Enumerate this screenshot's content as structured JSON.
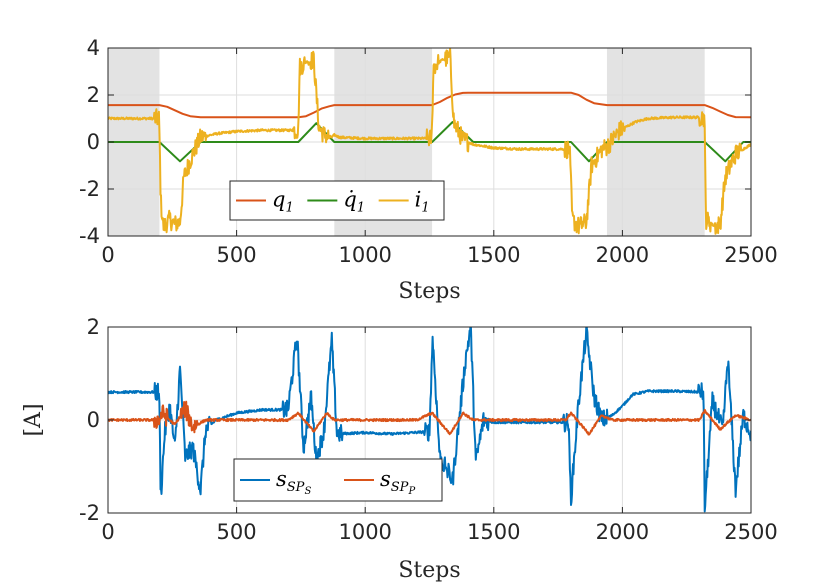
{
  "chart_data": [
    {
      "type": "line",
      "xlabel": "Steps",
      "ylabel": "",
      "xlim": [
        0,
        2500
      ],
      "ylim": [
        -4,
        4
      ],
      "xticks": [
        0,
        500,
        1000,
        1500,
        2000,
        2500
      ],
      "xtick_labels": [
        "0",
        "500",
        "1000",
        "1500",
        "2000",
        "2500"
      ],
      "yticks": [
        -4,
        -2,
        0,
        2,
        4
      ],
      "ytick_labels": [
        "-4",
        "-2",
        "0",
        "2",
        "4"
      ],
      "grid": true,
      "legend_placement": "bottom-left",
      "shaded_regions": [
        [
          0,
          200
        ],
        [
          880,
          1260
        ],
        [
          1940,
          2320
        ]
      ],
      "shade_color": "#e3e3e3",
      "series": [
        {
          "name": "q1",
          "color": "#d95319",
          "points": [
            [
              0,
              1.57
            ],
            [
              200,
              1.57
            ],
            [
              230,
              1.5
            ],
            [
              260,
              1.35
            ],
            [
              290,
              1.2
            ],
            [
              320,
              1.1
            ],
            [
              360,
              1.05
            ],
            [
              740,
              1.05
            ],
            [
              770,
              1.1
            ],
            [
              800,
              1.25
            ],
            [
              830,
              1.42
            ],
            [
              860,
              1.52
            ],
            [
              880,
              1.57
            ],
            [
              1260,
              1.57
            ],
            [
              1290,
              1.7
            ],
            [
              1320,
              1.88
            ],
            [
              1350,
              2.02
            ],
            [
              1380,
              2.09
            ],
            [
              1400,
              2.1
            ],
            [
              1800,
              2.1
            ],
            [
              1830,
              2.0
            ],
            [
              1860,
              1.8
            ],
            [
              1890,
              1.65
            ],
            [
              1940,
              1.57
            ],
            [
              2320,
              1.57
            ],
            [
              2350,
              1.45
            ],
            [
              2380,
              1.3
            ],
            [
              2410,
              1.15
            ],
            [
              2440,
              1.06
            ],
            [
              2500,
              1.05
            ]
          ]
        },
        {
          "name": "q̇1",
          "color": "#2e8b1a",
          "points": [
            [
              0,
              0
            ],
            [
              200,
              0
            ],
            [
              280,
              -0.82
            ],
            [
              360,
              0
            ],
            [
              740,
              0
            ],
            [
              810,
              0.8
            ],
            [
              880,
              0
            ],
            [
              1260,
              0
            ],
            [
              1340,
              0.85
            ],
            [
              1420,
              0
            ],
            [
              1800,
              0
            ],
            [
              1870,
              -0.82
            ],
            [
              1940,
              0
            ],
            [
              2320,
              0
            ],
            [
              2400,
              -0.82
            ],
            [
              2470,
              0
            ],
            [
              2500,
              0
            ]
          ]
        },
        {
          "name": "i1",
          "color": "#edb120",
          "noise": true,
          "points": [
            [
              0,
              1.0
            ],
            [
              199,
              1.0
            ],
            [
              205,
              -2.5
            ],
            [
              215,
              -3.6
            ],
            [
              240,
              -3.3
            ],
            [
              260,
              -3.5
            ],
            [
              280,
              -3.4
            ],
            [
              295,
              -1.5
            ],
            [
              330,
              -0.5
            ],
            [
              360,
              0.2
            ],
            [
              420,
              0.35
            ],
            [
              500,
              0.45
            ],
            [
              600,
              0.5
            ],
            [
              700,
              0.5
            ],
            [
              740,
              0.5
            ],
            [
              745,
              3.2
            ],
            [
              770,
              3.4
            ],
            [
              800,
              3.5
            ],
            [
              820,
              0.6
            ],
            [
              840,
              0.3
            ],
            [
              870,
              0.2
            ],
            [
              880,
              0.3
            ],
            [
              900,
              0.2
            ],
            [
              1000,
              0.15
            ],
            [
              1100,
              0.15
            ],
            [
              1200,
              0.15
            ],
            [
              1259,
              0.15
            ],
            [
              1265,
              3.2
            ],
            [
              1300,
              3.5
            ],
            [
              1330,
              3.6
            ],
            [
              1345,
              0.8
            ],
            [
              1380,
              0.1
            ],
            [
              1420,
              -0.1
            ],
            [
              1500,
              -0.25
            ],
            [
              1600,
              -0.3
            ],
            [
              1795,
              -0.3
            ],
            [
              1805,
              -3.3
            ],
            [
              1830,
              -3.6
            ],
            [
              1860,
              -3.4
            ],
            [
              1880,
              -1.0
            ],
            [
              1920,
              -0.3
            ],
            [
              1940,
              -0.2
            ],
            [
              1990,
              0.5
            ],
            [
              2050,
              0.85
            ],
            [
              2100,
              1.0
            ],
            [
              2200,
              1.05
            ],
            [
              2319,
              1.05
            ],
            [
              2325,
              -3.3
            ],
            [
              2360,
              -3.6
            ],
            [
              2380,
              -3.5
            ],
            [
              2400,
              -1.5
            ],
            [
              2440,
              -0.5
            ],
            [
              2500,
              -0.1
            ]
          ]
        }
      ]
    },
    {
      "type": "line",
      "xlabel": "Steps",
      "ylabel": "[A]",
      "xlim": [
        0,
        2500
      ],
      "ylim": [
        -2,
        2
      ],
      "xticks": [
        0,
        500,
        1000,
        1500,
        2000,
        2500
      ],
      "xtick_labels": [
        "0",
        "500",
        "1000",
        "1500",
        "2000",
        "2500"
      ],
      "yticks": [
        -2,
        0,
        2
      ],
      "ytick_labels": [
        "-2",
        "0",
        "2"
      ],
      "grid": true,
      "legend_placement": "bottom-left",
      "series": [
        {
          "name": "sSPS",
          "color": "#0072bd",
          "noise": true,
          "points": [
            [
              0,
              0.6
            ],
            [
              199,
              0.6
            ],
            [
              205,
              -1.7
            ],
            [
              220,
              -0.3
            ],
            [
              240,
              0.3
            ],
            [
              260,
              -0.6
            ],
            [
              280,
              1.1
            ],
            [
              300,
              -0.8
            ],
            [
              330,
              -0.6
            ],
            [
              360,
              -1.5
            ],
            [
              380,
              -0.2
            ],
            [
              420,
              0.0
            ],
            [
              500,
              0.15
            ],
            [
              600,
              0.22
            ],
            [
              700,
              0.22
            ],
            [
              735,
              1.8
            ],
            [
              760,
              -0.6
            ],
            [
              790,
              0.5
            ],
            [
              810,
              -0.9
            ],
            [
              840,
              -0.2
            ],
            [
              870,
              1.7
            ],
            [
              890,
              -0.3
            ],
            [
              1000,
              -0.27
            ],
            [
              1100,
              -0.3
            ],
            [
              1250,
              -0.25
            ],
            [
              1262,
              1.8
            ],
            [
              1290,
              -0.8
            ],
            [
              1340,
              -1.3
            ],
            [
              1390,
              1.3
            ],
            [
              1410,
              2.0
            ],
            [
              1430,
              -0.9
            ],
            [
              1460,
              0.0
            ],
            [
              1500,
              -0.05
            ],
            [
              1600,
              -0.05
            ],
            [
              1790,
              -0.05
            ],
            [
              1800,
              -1.7
            ],
            [
              1830,
              0.4
            ],
            [
              1860,
              1.9
            ],
            [
              1890,
              0.5
            ],
            [
              1920,
              0.0
            ],
            [
              1960,
              0.1
            ],
            [
              2000,
              0.3
            ],
            [
              2040,
              0.55
            ],
            [
              2100,
              0.62
            ],
            [
              2200,
              0.62
            ],
            [
              2315,
              0.6
            ],
            [
              2320,
              -1.9
            ],
            [
              2350,
              0.4
            ],
            [
              2390,
              -0.2
            ],
            [
              2410,
              1.3
            ],
            [
              2440,
              -1.5
            ],
            [
              2470,
              0.1
            ],
            [
              2500,
              -0.3
            ]
          ]
        },
        {
          "name": "sSPP",
          "color": "#d95319",
          "noise": true,
          "points": [
            [
              0,
              0.0
            ],
            [
              200,
              0.0
            ],
            [
              210,
              0.15
            ],
            [
              260,
              -0.1
            ],
            [
              300,
              0.25
            ],
            [
              330,
              -0.15
            ],
            [
              380,
              0.0
            ],
            [
              700,
              0.0
            ],
            [
              740,
              0.15
            ],
            [
              800,
              -0.25
            ],
            [
              850,
              0.15
            ],
            [
              880,
              0.0
            ],
            [
              1200,
              0.0
            ],
            [
              1260,
              0.15
            ],
            [
              1330,
              -0.3
            ],
            [
              1380,
              0.15
            ],
            [
              1420,
              0.0
            ],
            [
              1780,
              0.0
            ],
            [
              1800,
              0.15
            ],
            [
              1870,
              -0.3
            ],
            [
              1920,
              0.1
            ],
            [
              1960,
              0.0
            ],
            [
              2300,
              0.0
            ],
            [
              2320,
              0.2
            ],
            [
              2380,
              -0.2
            ],
            [
              2440,
              0.1
            ],
            [
              2500,
              0.0
            ]
          ]
        }
      ]
    }
  ]
}
